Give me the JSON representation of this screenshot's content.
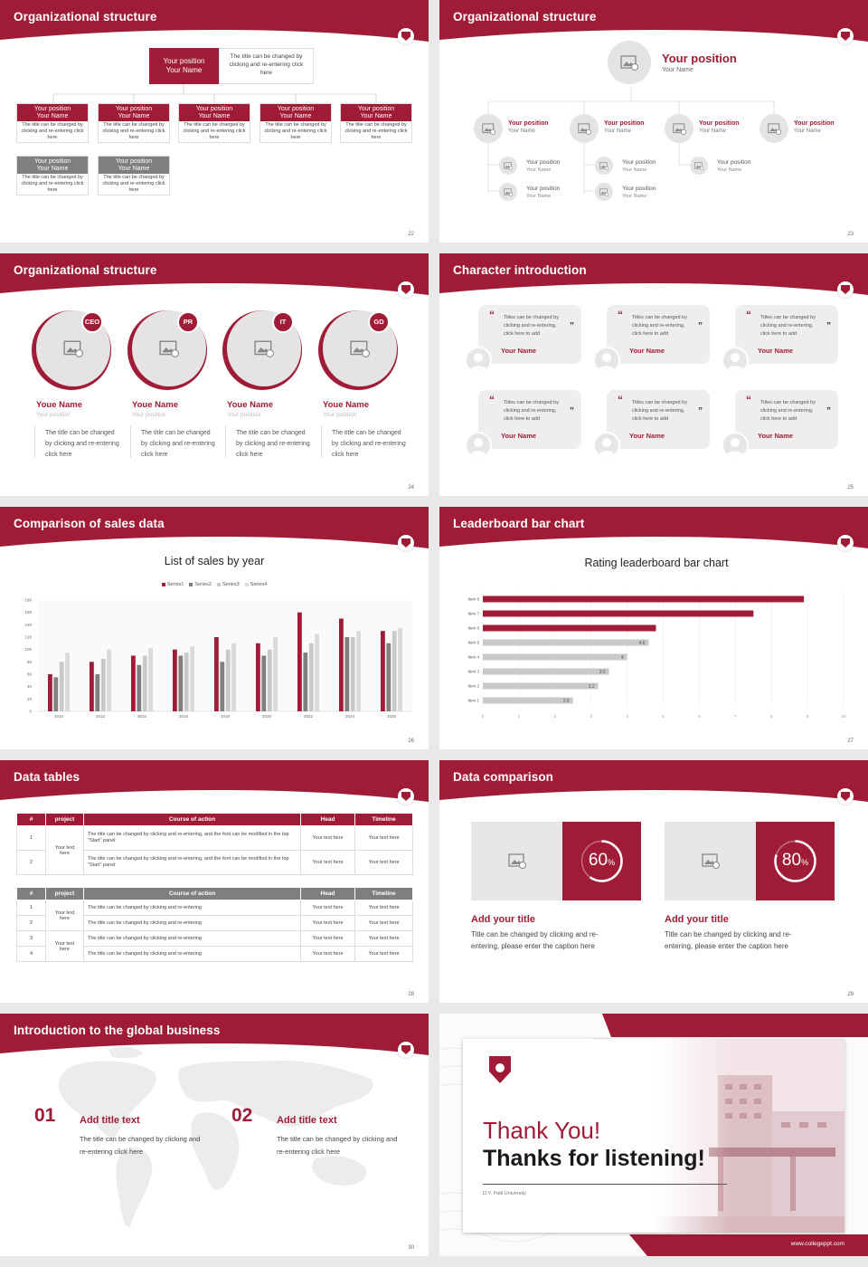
{
  "icons": {
    "image": "image-placeholder-icon",
    "user": "user-icon",
    "quote": "quote-icon",
    "logo": "shield-logo-icon"
  },
  "colors": {
    "brand": "#a01c36",
    "grey": "#7f7f7f",
    "light_grey": "#c9c9c9"
  },
  "s22": {
    "title": "Organizational structure",
    "num": "22",
    "top": {
      "pos": "Your position",
      "name": "Your Name",
      "desc": "The title can be changed by clicking and re-entering click here"
    },
    "boxes": [
      {
        "pos": "Your position",
        "name": "Your Name",
        "desc": "The title can be changed by clicking and re-entering click here"
      },
      {
        "pos": "Your position",
        "name": "Your Name",
        "desc": "The title can be changed by clicking and re-entering click here"
      },
      {
        "pos": "Your position",
        "name": "Your Name",
        "desc": "The title can be changed by clicking and re-entering click here"
      },
      {
        "pos": "Your position",
        "name": "Your Name",
        "desc": "The title can be changed by clicking and re-entering click here"
      },
      {
        "pos": "Your position",
        "name": "Your Name",
        "desc": "The title can be changed by clicking and re-entering click here"
      },
      {
        "pos": "Your position",
        "name": "Your Name",
        "desc": "The title can be changed by clicking and re-entering click here"
      },
      {
        "pos": "Your position",
        "name": "Your Name",
        "desc": "The title can be changed by clicking and re-entering click here"
      }
    ]
  },
  "s23": {
    "title": "Organizational structure",
    "num": "23",
    "top": {
      "pos": "Your position",
      "name": "Your Name"
    },
    "level1": [
      {
        "pos": "Your position",
        "name": "Your Name"
      },
      {
        "pos": "Your position",
        "name": "Your Name"
      },
      {
        "pos": "Your position",
        "name": "Your Name"
      },
      {
        "pos": "Your position",
        "name": "Your Name"
      }
    ],
    "level2": [
      {
        "pos": "Your position",
        "name": "Your Name"
      },
      {
        "pos": "Your position",
        "name": "Your Name"
      },
      {
        "pos": "Your position",
        "name": "Your Name"
      },
      {
        "pos": "Your position",
        "name": "Your Name"
      },
      {
        "pos": "Your position",
        "name": "Your Name"
      }
    ]
  },
  "s24": {
    "title": "Organizational structure",
    "num": "24",
    "people": [
      {
        "badge": "CEO",
        "name": "Youe Name",
        "pos": "Your position",
        "desc": "The title can be changed by clicking and re-entering click here"
      },
      {
        "badge": "PR",
        "name": "Youe Name",
        "pos": "Your position",
        "desc": "The title can be changed by clicking and re-entering click here"
      },
      {
        "badge": "IT",
        "name": "Youe Name",
        "pos": "Your position",
        "desc": "The title can be changed by clicking and re-entering click here"
      },
      {
        "badge": "GD",
        "name": "Youe Name",
        "pos": "Your position",
        "desc": "The title can be changed by clicking and re-entering click here"
      }
    ]
  },
  "s25": {
    "title": "Character introduction",
    "num": "25",
    "cards": [
      {
        "text": "Titles can be changed by clicking and re-entering, click here to add",
        "name": "Your Name"
      },
      {
        "text": "Titles can be changed by clicking and re-entering, click here to add",
        "name": "Your Name"
      },
      {
        "text": "Titles can be changed by clicking and re-entering, click here to add",
        "name": "Your Name"
      },
      {
        "text": "Titles can be changed by clicking and re-entering, click here to add",
        "name": "Your Name"
      },
      {
        "text": "Titles can be changed by clicking and re-entering, click here to add",
        "name": "Your Name"
      },
      {
        "text": "Titles can be changed by clicking and re-entering, click here to add",
        "name": "Your Name"
      }
    ]
  },
  "s26": {
    "title": "Comparison of sales data",
    "num": "26"
  },
  "s27": {
    "title": "Leaderboard bar chart",
    "num": "27"
  },
  "chart_data": [
    {
      "type": "bar",
      "title": "List of sales by year",
      "xlabel": "",
      "ylabel": "",
      "categories": [
        "2010",
        "2012",
        "2014",
        "2016",
        "2018",
        "2020",
        "2022",
        "2024",
        "2026"
      ],
      "ylim": [
        0,
        180
      ],
      "yticks": [
        0,
        20,
        40,
        60,
        80,
        100,
        120,
        140,
        160,
        180
      ],
      "legend": "top-center",
      "series": [
        {
          "name": "Series1",
          "color": "#a01c36",
          "values": [
            60,
            80,
            90,
            100,
            120,
            110,
            160,
            150,
            130
          ]
        },
        {
          "name": "Series2",
          "color": "#7f7f7f",
          "values": [
            55,
            60,
            75,
            90,
            80,
            90,
            95,
            120,
            110
          ]
        },
        {
          "name": "Series3",
          "color": "#c9c9c9",
          "values": [
            80,
            85,
            90,
            95,
            100,
            100,
            110,
            120,
            130
          ]
        },
        {
          "name": "Series4",
          "color": "#dadada",
          "values": [
            95,
            100,
            102,
            105,
            110,
            120,
            125,
            130,
            135
          ]
        }
      ]
    },
    {
      "type": "bar",
      "orientation": "horizontal",
      "title": "Rating leaderboard bar chart",
      "categories": [
        "Item 1",
        "Item 2",
        "Item 3",
        "Item 4",
        "Item 5",
        "Item 6",
        "Item 7",
        "Item 8"
      ],
      "values": [
        2.5,
        3.2,
        3.5,
        4,
        4.6,
        4.8,
        7.5,
        8.9
      ],
      "data_labels": [
        "2.5",
        "3.2",
        "3.5",
        "4",
        "4.6",
        "",
        "",
        ""
      ],
      "colors": [
        "#c9c9c9",
        "#c9c9c9",
        "#c9c9c9",
        "#c9c9c9",
        "#c9c9c9",
        "#a01c36",
        "#a01c36",
        "#a01c36"
      ],
      "xlim": [
        0,
        10
      ],
      "xticks": [
        "0",
        "1",
        "2",
        "3",
        "4",
        "5",
        "6",
        "7",
        "8",
        "9",
        "10"
      ],
      "grid": true
    }
  ],
  "s28": {
    "title": "Data tables",
    "num": "28",
    "t1": {
      "headers": [
        "#",
        "project",
        "Course of action",
        "Head",
        "Timeline"
      ],
      "rows": [
        {
          "n": "1",
          "action": "The title can be changed by clicking and re-entering, and the font can be modified in the top \"Start\" panel",
          "head": "Your text here",
          "time": "Your text here"
        },
        {
          "n": "2",
          "action": "The title can be changed by clicking and re-entering, and the font can be modified in the top \"Start\" panel",
          "head": "Your text here",
          "time": "Your text here"
        }
      ],
      "project": "Your text here"
    },
    "t2": {
      "headers": [
        "#",
        "project",
        "Course of action",
        "Head",
        "Timeline"
      ],
      "rows": [
        {
          "n": "1",
          "action": "The title can be changed by clicking and re-entering",
          "head": "Your text here",
          "time": "Your text here"
        },
        {
          "n": "2",
          "action": "The title can be changed by clicking and re-entering",
          "head": "Your text here",
          "time": "Your text here"
        },
        {
          "n": "3",
          "action": "The title can be changed by clicking and re-entering",
          "head": "Your text here",
          "time": "Your text here"
        },
        {
          "n": "4",
          "action": "The title can be changed by clicking and re-entering",
          "head": "Your text here",
          "time": "Your text here"
        }
      ],
      "project1": "Your text here",
      "project2": "Your text here"
    }
  },
  "s29": {
    "title": "Data comparison",
    "num": "29",
    "items": [
      {
        "pct": "60",
        "unit": "%",
        "progress": 0.6,
        "title": "Add your title",
        "desc": "Title can be changed by clicking and re-entering, please enter the caption here"
      },
      {
        "pct": "80",
        "unit": "%",
        "progress": 0.8,
        "title": "Add your title",
        "desc": "Title can be changed by clicking and re-entering, please enter the caption here"
      }
    ]
  },
  "s30": {
    "title": "Introduction to the global business",
    "num": "30",
    "items": [
      {
        "n": "01",
        "title": "Add title text",
        "desc": "The title can be changed by clicking and re-entering click here"
      },
      {
        "n": "02",
        "title": "Add title text",
        "desc": "The title can be changed by clicking and re-entering click here"
      }
    ]
  },
  "s31": {
    "line1": "Thank You!",
    "line2": "Thanks for listening!",
    "sub": "D.Y. Patil University",
    "url": "www.collegeppt.com"
  }
}
